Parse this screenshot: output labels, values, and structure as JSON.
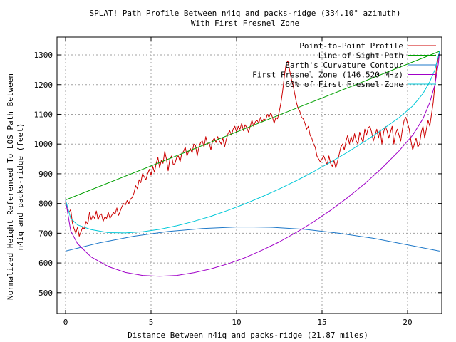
{
  "chart_data": {
    "type": "line",
    "title": "SPLAT! Path Profile Between n4iq and packs-ridge (334.10° azimuth)",
    "subtitle": "With First Fresnel Zone",
    "xlabel": "Distance Between n4iq and packs-ridge (21.87 miles)",
    "ylabel_line1": "Normalized Height Referenced To LOS Path Between",
    "ylabel_line2": "n4iq and packs-ridge (feet)",
    "xlim": [
      -0.5,
      22
    ],
    "ylim": [
      430,
      1360
    ],
    "x_ticks": [
      0,
      5,
      10,
      15,
      20
    ],
    "y_ticks": [
      500,
      600,
      700,
      800,
      900,
      1000,
      1100,
      1200,
      1300
    ],
    "grid": true,
    "legend_position": "top-right",
    "series": [
      {
        "name": "Point-to-Point Profile",
        "color": "#cc0000",
        "points": [
          [
            0.0,
            805
          ],
          [
            0.1,
            780
          ],
          [
            0.2,
            770
          ],
          [
            0.3,
            780
          ],
          [
            0.4,
            735
          ],
          [
            0.5,
            715
          ],
          [
            0.6,
            700
          ],
          [
            0.7,
            720
          ],
          [
            0.8,
            690
          ],
          [
            0.9,
            705
          ],
          [
            1.0,
            720
          ],
          [
            1.1,
            715
          ],
          [
            1.2,
            740
          ],
          [
            1.3,
            730
          ],
          [
            1.4,
            770
          ],
          [
            1.5,
            745
          ],
          [
            1.6,
            760
          ],
          [
            1.7,
            750
          ],
          [
            1.8,
            775
          ],
          [
            1.9,
            745
          ],
          [
            2.0,
            760
          ],
          [
            2.1,
            765
          ],
          [
            2.2,
            740
          ],
          [
            2.3,
            755
          ],
          [
            2.4,
            750
          ],
          [
            2.5,
            770
          ],
          [
            2.6,
            750
          ],
          [
            2.7,
            760
          ],
          [
            2.8,
            770
          ],
          [
            2.9,
            765
          ],
          [
            3.0,
            785
          ],
          [
            3.1,
            760
          ],
          [
            3.2,
            775
          ],
          [
            3.3,
            790
          ],
          [
            3.4,
            800
          ],
          [
            3.5,
            795
          ],
          [
            3.6,
            810
          ],
          [
            3.7,
            800
          ],
          [
            3.8,
            815
          ],
          [
            3.9,
            820
          ],
          [
            4.0,
            835
          ],
          [
            4.1,
            860
          ],
          [
            4.2,
            850
          ],
          [
            4.3,
            880
          ],
          [
            4.4,
            870
          ],
          [
            4.5,
            900
          ],
          [
            4.6,
            890
          ],
          [
            4.7,
            880
          ],
          [
            4.8,
            900
          ],
          [
            4.9,
            915
          ],
          [
            5.0,
            895
          ],
          [
            5.1,
            925
          ],
          [
            5.2,
            905
          ],
          [
            5.3,
            935
          ],
          [
            5.4,
            955
          ],
          [
            5.5,
            920
          ],
          [
            5.6,
            945
          ],
          [
            5.7,
            935
          ],
          [
            5.8,
            975
          ],
          [
            5.9,
            950
          ],
          [
            6.0,
            910
          ],
          [
            6.1,
            950
          ],
          [
            6.2,
            960
          ],
          [
            6.3,
            930
          ],
          [
            6.4,
            935
          ],
          [
            6.5,
            955
          ],
          [
            6.6,
            960
          ],
          [
            6.7,
            940
          ],
          [
            6.8,
            970
          ],
          [
            6.9,
            975
          ],
          [
            7.0,
            990
          ],
          [
            7.1,
            960
          ],
          [
            7.2,
            975
          ],
          [
            7.3,
            985
          ],
          [
            7.4,
            970
          ],
          [
            7.5,
            1000
          ],
          [
            7.6,
            995
          ],
          [
            7.7,
            960
          ],
          [
            7.8,
            990
          ],
          [
            7.9,
            1005
          ],
          [
            8.0,
            1010
          ],
          [
            8.1,
            990
          ],
          [
            8.2,
            1025
          ],
          [
            8.3,
            1000
          ],
          [
            8.4,
            1005
          ],
          [
            8.5,
            980
          ],
          [
            8.6,
            1010
          ],
          [
            8.7,
            1020
          ],
          [
            8.8,
            1005
          ],
          [
            8.9,
            1025
          ],
          [
            9.0,
            1010
          ],
          [
            9.1,
            1000
          ],
          [
            9.2,
            1020
          ],
          [
            9.3,
            990
          ],
          [
            9.4,
            1015
          ],
          [
            9.5,
            1035
          ],
          [
            9.6,
            1045
          ],
          [
            9.7,
            1030
          ],
          [
            9.8,
            1050
          ],
          [
            9.9,
            1060
          ],
          [
            10.0,
            1040
          ],
          [
            10.1,
            1060
          ],
          [
            10.2,
            1050
          ],
          [
            10.3,
            1070
          ],
          [
            10.4,
            1045
          ],
          [
            10.5,
            1065
          ],
          [
            10.6,
            1055
          ],
          [
            10.7,
            1040
          ],
          [
            10.8,
            1060
          ],
          [
            10.9,
            1080
          ],
          [
            11.0,
            1060
          ],
          [
            11.1,
            1075
          ],
          [
            11.2,
            1080
          ],
          [
            11.3,
            1070
          ],
          [
            11.4,
            1090
          ],
          [
            11.5,
            1075
          ],
          [
            11.6,
            1085
          ],
          [
            11.7,
            1080
          ],
          [
            11.8,
            1100
          ],
          [
            11.9,
            1090
          ],
          [
            12.0,
            1105
          ],
          [
            12.1,
            1090
          ],
          [
            12.2,
            1070
          ],
          [
            12.3,
            1090
          ],
          [
            12.4,
            1085
          ],
          [
            12.5,
            1110
          ],
          [
            12.6,
            1140
          ],
          [
            12.7,
            1180
          ],
          [
            12.8,
            1230
          ],
          [
            12.9,
            1270
          ],
          [
            13.0,
            1280
          ],
          [
            13.1,
            1250
          ],
          [
            13.2,
            1220
          ],
          [
            13.3,
            1200
          ],
          [
            13.4,
            1170
          ],
          [
            13.5,
            1140
          ],
          [
            13.6,
            1120
          ],
          [
            13.7,
            1110
          ],
          [
            13.8,
            1090
          ],
          [
            13.9,
            1085
          ],
          [
            14.0,
            1070
          ],
          [
            14.1,
            1050
          ],
          [
            14.2,
            1060
          ],
          [
            14.3,
            1030
          ],
          [
            14.4,
            1020
          ],
          [
            14.5,
            1000
          ],
          [
            14.6,
            990
          ],
          [
            14.7,
            960
          ],
          [
            14.8,
            950
          ],
          [
            14.9,
            940
          ],
          [
            15.0,
            950
          ],
          [
            15.1,
            960
          ],
          [
            15.2,
            945
          ],
          [
            15.3,
            930
          ],
          [
            15.4,
            960
          ],
          [
            15.5,
            935
          ],
          [
            15.6,
            925
          ],
          [
            15.7,
            945
          ],
          [
            15.8,
            920
          ],
          [
            15.9,
            940
          ],
          [
            16.0,
            965
          ],
          [
            16.1,
            990
          ],
          [
            16.2,
            1000
          ],
          [
            16.3,
            980
          ],
          [
            16.4,
            1010
          ],
          [
            16.5,
            1030
          ],
          [
            16.6,
            1000
          ],
          [
            16.7,
            1025
          ],
          [
            16.8,
            1005
          ],
          [
            16.9,
            1035
          ],
          [
            17.0,
            1010
          ],
          [
            17.1,
            1000
          ],
          [
            17.2,
            1040
          ],
          [
            17.3,
            1020
          ],
          [
            17.4,
            1005
          ],
          [
            17.5,
            1050
          ],
          [
            17.6,
            1030
          ],
          [
            17.7,
            1055
          ],
          [
            17.8,
            1060
          ],
          [
            17.9,
            1040
          ],
          [
            18.0,
            1010
          ],
          [
            18.1,
            1030
          ],
          [
            18.2,
            1050
          ],
          [
            18.3,
            1020
          ],
          [
            18.4,
            1050
          ],
          [
            18.5,
            1000
          ],
          [
            18.6,
            1040
          ],
          [
            18.7,
            1060
          ],
          [
            18.8,
            1045
          ],
          [
            18.9,
            1020
          ],
          [
            19.0,
            1040
          ],
          [
            19.1,
            1060
          ],
          [
            19.2,
            1000
          ],
          [
            19.3,
            1035
          ],
          [
            19.4,
            1050
          ],
          [
            19.5,
            1030
          ],
          [
            19.6,
            1010
          ],
          [
            19.7,
            1050
          ],
          [
            19.8,
            1080
          ],
          [
            19.9,
            1090
          ],
          [
            20.0,
            1070
          ],
          [
            20.1,
            1050
          ],
          [
            20.2,
            1010
          ],
          [
            20.3,
            980
          ],
          [
            20.4,
            1000
          ],
          [
            20.5,
            1020
          ],
          [
            20.6,
            990
          ],
          [
            20.7,
            1000
          ],
          [
            20.8,
            1040
          ],
          [
            20.9,
            1060
          ],
          [
            21.0,
            1020
          ],
          [
            21.1,
            1050
          ],
          [
            21.2,
            1080
          ],
          [
            21.3,
            1060
          ],
          [
            21.4,
            1100
          ],
          [
            21.5,
            1140
          ],
          [
            21.6,
            1200
          ],
          [
            21.7,
            1260
          ],
          [
            21.87,
            1310
          ]
        ]
      },
      {
        "name": "Line of Sight Path",
        "color": "#00a000",
        "points": [
          [
            0,
            812
          ],
          [
            21.87,
            1312
          ]
        ]
      },
      {
        "name": "Earth's Curvature Contour",
        "color": "#1e78c8",
        "points": [
          [
            0,
            640
          ],
          [
            2,
            668
          ],
          [
            4,
            690
          ],
          [
            6,
            706
          ],
          [
            8,
            716
          ],
          [
            10,
            721
          ],
          [
            11,
            721
          ],
          [
            12,
            720
          ],
          [
            14,
            713
          ],
          [
            16,
            700
          ],
          [
            18,
            683
          ],
          [
            20,
            661
          ],
          [
            21.87,
            640
          ]
        ]
      },
      {
        "name": "First Fresnel Zone (146.520 MHz)",
        "color": "#a000c8",
        "points": [
          [
            0,
            812
          ],
          [
            0.3,
            708
          ],
          [
            0.7,
            665
          ],
          [
            1.5,
            620
          ],
          [
            2.5,
            588
          ],
          [
            3.5,
            568
          ],
          [
            4.5,
            558
          ],
          [
            5.5,
            555
          ],
          [
            6.5,
            558
          ],
          [
            7.5,
            567
          ],
          [
            8.5,
            580
          ],
          [
            9.5,
            597
          ],
          [
            10.5,
            618
          ],
          [
            11.5,
            643
          ],
          [
            12.5,
            671
          ],
          [
            13.5,
            703
          ],
          [
            14.5,
            738
          ],
          [
            15.5,
            777
          ],
          [
            16.5,
            820
          ],
          [
            17.5,
            867
          ],
          [
            18.5,
            919
          ],
          [
            19.5,
            977
          ],
          [
            20.3,
            1030
          ],
          [
            20.9,
            1085
          ],
          [
            21.3,
            1140
          ],
          [
            21.6,
            1200
          ],
          [
            21.8,
            1270
          ],
          [
            21.87,
            1312
          ]
        ]
      },
      {
        "name": "60% of First Fresnel Zone",
        "color": "#00c8d8",
        "points": [
          [
            0,
            812
          ],
          [
            0.3,
            750
          ],
          [
            0.7,
            728
          ],
          [
            1.5,
            712
          ],
          [
            2.5,
            702
          ],
          [
            3.5,
            701
          ],
          [
            4.5,
            705
          ],
          [
            5.5,
            713
          ],
          [
            6.5,
            725
          ],
          [
            7.5,
            740
          ],
          [
            8.5,
            757
          ],
          [
            9.5,
            777
          ],
          [
            10.5,
            799
          ],
          [
            11.5,
            823
          ],
          [
            12.5,
            849
          ],
          [
            13.5,
            877
          ],
          [
            14.5,
            907
          ],
          [
            15.5,
            939
          ],
          [
            16.5,
            973
          ],
          [
            17.5,
            1009
          ],
          [
            18.5,
            1048
          ],
          [
            19.5,
            1089
          ],
          [
            20.3,
            1128
          ],
          [
            20.9,
            1170
          ],
          [
            21.3,
            1210
          ],
          [
            21.6,
            1250
          ],
          [
            21.87,
            1312
          ]
        ]
      }
    ]
  }
}
